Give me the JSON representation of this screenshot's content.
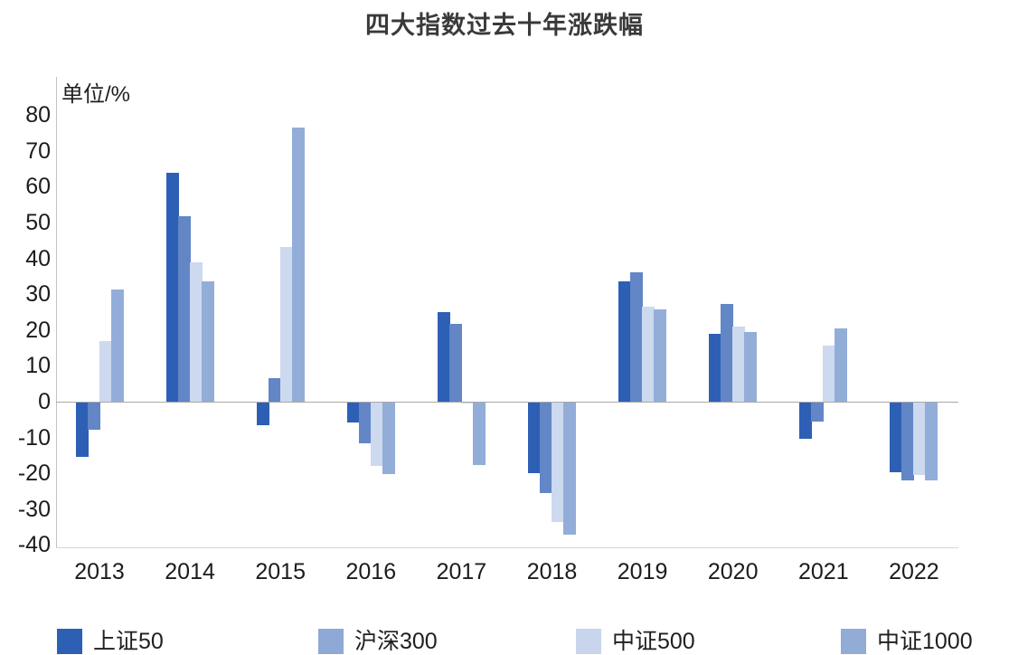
{
  "chart_data": {
    "type": "bar",
    "title": "四大指数过去十年涨跌幅",
    "unit_label": "单位/%",
    "categories": [
      "2013",
      "2014",
      "2015",
      "2016",
      "2017",
      "2018",
      "2019",
      "2020",
      "2021",
      "2022"
    ],
    "series": [
      {
        "name": "上证50",
        "color": "#2d5fb5",
        "legend_color": "#2d5fb5",
        "values": [
          -15.2,
          63.9,
          -6.2,
          -5.5,
          25.1,
          -19.8,
          33.6,
          18.9,
          -10.1,
          -19.5
        ]
      },
      {
        "name": "沪深300",
        "color": "#6286c6",
        "legend_color": "#8fa9d6",
        "values": [
          -7.7,
          51.7,
          6.5,
          -11.3,
          21.8,
          -25.3,
          36.1,
          27.2,
          -5.2,
          -21.6
        ]
      },
      {
        "name": "中证500",
        "color": "#ccd9ee",
        "legend_color": "#c9d5ec",
        "values": [
          16.9,
          39.0,
          43.1,
          -17.8,
          -0.2,
          -33.3,
          26.4,
          20.9,
          15.6,
          -20.3
        ]
      },
      {
        "name": "中证1000",
        "color": "#93add9",
        "legend_color": "#92abd7",
        "values": [
          31.2,
          33.6,
          76.4,
          -20.0,
          -17.4,
          -36.9,
          25.7,
          19.4,
          20.5,
          -21.6
        ]
      }
    ],
    "yticks": [
      80,
      70,
      60,
      50,
      40,
      30,
      20,
      10,
      0,
      -10,
      -20,
      -30,
      -40
    ],
    "ylim": [
      -40,
      85
    ],
    "xlabel": "",
    "ylabel": "单位/%",
    "grid": false,
    "legend_position": "bottom",
    "axis_text_color": "#1c1c1c",
    "zero_line_color": "#a8a8a8"
  }
}
